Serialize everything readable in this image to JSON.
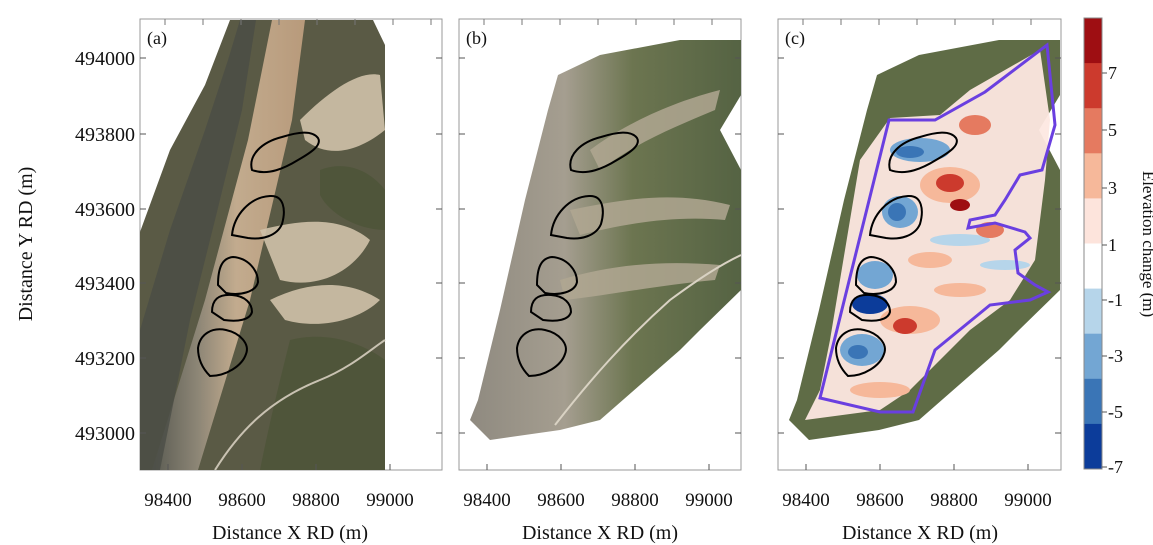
{
  "figure": {
    "panels": [
      {
        "id": "a",
        "label": "(a)",
        "xlabel": "Distance X RD (m)",
        "ylabel": "Distance Y RD (m)",
        "xticks": [
          "98400",
          "98600",
          "98800",
          "99000"
        ],
        "yticks": [
          "494000",
          "493800",
          "493600",
          "493400",
          "493200",
          "493000"
        ]
      },
      {
        "id": "b",
        "label": "(b)",
        "xlabel": "Distance X RD (m)",
        "xticks": [
          "98400",
          "98600",
          "98800",
          "99000"
        ]
      },
      {
        "id": "c",
        "label": "(c)",
        "xlabel": "Distance X RD (m)",
        "xticks": [
          "98400",
          "98600",
          "98800",
          "99000"
        ]
      }
    ],
    "colorbar": {
      "label": "Elevation change (m)",
      "ticks": [
        "7",
        "5",
        "3",
        "1",
        "-1",
        "-3",
        "-5",
        "-7"
      ],
      "colors": [
        "#9e0e12",
        "#cc3a2d",
        "#e57a60",
        "#f6b89a",
        "#fde4dc",
        "#ffffff",
        "#b6d5ea",
        "#73a6d3",
        "#3a75b6",
        "#0c3c9a"
      ]
    },
    "colors": {
      "outline": "#000000",
      "study_area": "#6a3fe0",
      "beach": "#b89b7e",
      "dune_veg": "#4f5a38",
      "sand": "#d6c9b3"
    }
  }
}
